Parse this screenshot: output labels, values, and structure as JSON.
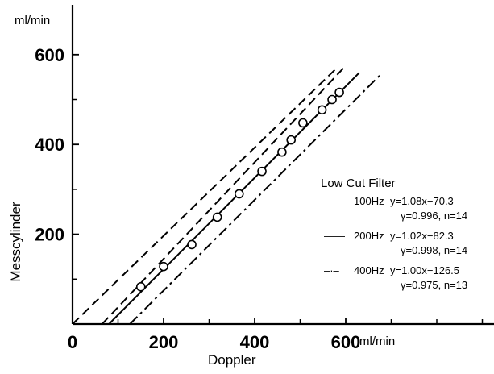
{
  "chart_data": {
    "type": "scatter",
    "x_unit": "ml/min",
    "y_unit": "ml/min",
    "xlabel": "Doppler",
    "ylabel": "Messcylinder",
    "xlim": [
      0,
      950
    ],
    "ylim": [
      0,
      700
    ],
    "x_ticks": [
      0,
      200,
      400,
      600
    ],
    "y_ticks": [
      200,
      400,
      600
    ],
    "x_minor_ticks": [
      100,
      300,
      500,
      700,
      800,
      900
    ],
    "y_minor_ticks": [
      100,
      300,
      500
    ],
    "grid": false,
    "points": {
      "x": [
        150,
        200,
        262,
        318,
        366,
        416,
        460,
        480,
        506,
        548,
        570,
        586
      ],
      "y": [
        83,
        128,
        177,
        238,
        290,
        340,
        383,
        410,
        448,
        477,
        500,
        516
      ]
    },
    "legend": {
      "title": "Low Cut Filter",
      "placement": "right",
      "entries": [
        {
          "line": "— —",
          "freq": "100Hz",
          "equation": "y=1.08x−70.3",
          "stats": "γ=0.996, n=14"
        },
        {
          "line": "——",
          "freq": "200Hz",
          "equation": "y=1.02x−82.3",
          "stats": "γ=0.998, n=14"
        },
        {
          "line": "–·–",
          "freq": "400Hz",
          "equation": "y=1.00x−126.5",
          "stats": "γ=0.975, n=13"
        }
      ]
    },
    "series": [
      {
        "style": "dashed",
        "x": [
          0,
          580
        ],
        "y": [
          0,
          570
        ],
        "color": "#000000"
      },
      {
        "style": "dashed",
        "x": [
          65,
          595
        ],
        "y": [
          0,
          570
        ],
        "color": "#000000"
      },
      {
        "style": "solid",
        "x": [
          80,
          630
        ],
        "y": [
          0,
          560
        ],
        "color": "#000000"
      },
      {
        "style": "dashdot",
        "x": [
          126,
          676
        ],
        "y": [
          0,
          555
        ],
        "color": "#000000"
      }
    ]
  }
}
